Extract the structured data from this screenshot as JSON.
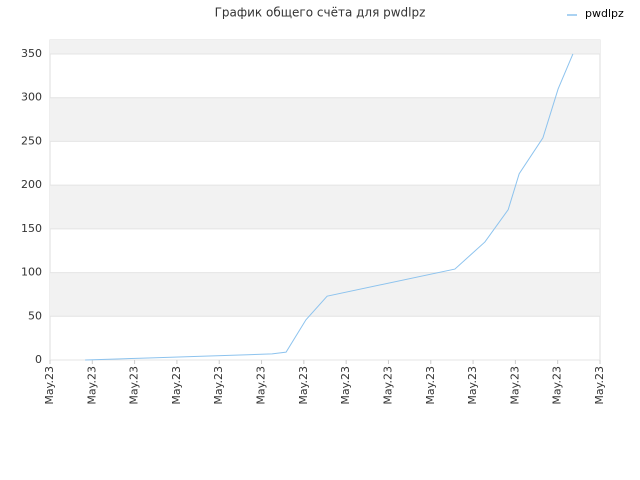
{
  "chart_data": {
    "type": "line",
    "title": "График общего счёта для pwdlpz",
    "x": [
      0.83,
      1.49,
      2.13,
      2.77,
      3.4,
      4.04,
      4.68,
      5.25,
      5.58,
      6.05,
      6.55,
      9.57,
      10.28,
      10.83,
      11.09,
      11.65,
      12.01,
      12.36
    ],
    "series": [
      {
        "name": "pwdlpz",
        "color": "#8dc3ee",
        "values": [
          0,
          1,
          2,
          3,
          4,
          5,
          6,
          7,
          9,
          46,
          73,
          104,
          135,
          172,
          213,
          254,
          310,
          350
        ]
      }
    ],
    "xlim": [
      0,
      13
    ],
    "xticks": [
      {
        "value": 0,
        "label": "May.23"
      },
      {
        "value": 1,
        "label": "May.23"
      },
      {
        "value": 2,
        "label": "May.23"
      },
      {
        "value": 3,
        "label": "May.23"
      },
      {
        "value": 4,
        "label": "May.23"
      },
      {
        "value": 5,
        "label": "May.23"
      },
      {
        "value": 6,
        "label": "May.23"
      },
      {
        "value": 7,
        "label": "May.23"
      },
      {
        "value": 8,
        "label": "May.23"
      },
      {
        "value": 9,
        "label": "May.23"
      },
      {
        "value": 10,
        "label": "May.23"
      },
      {
        "value": 11,
        "label": "May.23"
      },
      {
        "value": 12,
        "label": "May.23"
      },
      {
        "value": 13,
        "label": "May.23"
      }
    ],
    "ylim": [
      0,
      366
    ],
    "yticks": [
      0,
      50,
      100,
      150,
      200,
      250,
      300,
      350
    ],
    "grid": true,
    "legend": "top-right"
  }
}
